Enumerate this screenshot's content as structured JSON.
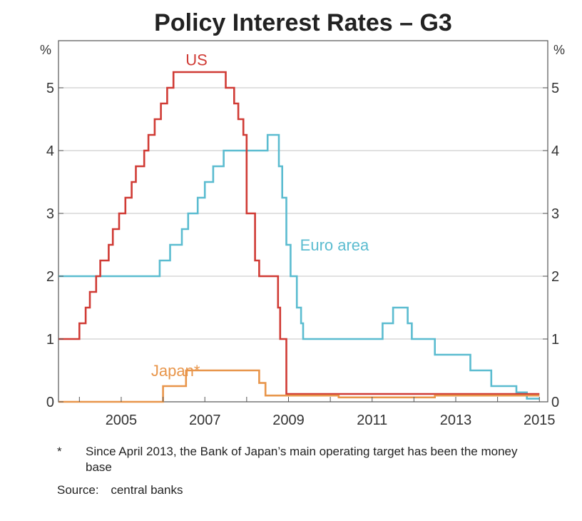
{
  "chart_data": {
    "type": "line",
    "title": "Policy Interest Rates – G3",
    "y_unit_left": "%",
    "y_unit_right": "%",
    "xlim": [
      2003.5,
      2015.2
    ],
    "ylim": [
      0,
      5.75
    ],
    "x_ticks": [
      2005,
      2007,
      2009,
      2011,
      2013,
      2015
    ],
    "x_tick_labels": [
      "2005",
      "2007",
      "2009",
      "2011",
      "2013",
      "2015"
    ],
    "y_ticks": [
      0,
      1,
      2,
      3,
      4,
      5
    ],
    "y_tick_labels": [
      "0",
      "1",
      "2",
      "3",
      "4",
      "5"
    ],
    "grid": true,
    "series": [
      {
        "name": "Euro area",
        "color": "#5bbcd0",
        "label_at": [
          2010.1,
          2.5
        ],
        "points": [
          [
            2003.5,
            2.0
          ],
          [
            2005.92,
            2.25
          ],
          [
            2006.17,
            2.5
          ],
          [
            2006.45,
            2.75
          ],
          [
            2006.6,
            3.0
          ],
          [
            2006.83,
            3.25
          ],
          [
            2007.0,
            3.5
          ],
          [
            2007.2,
            3.75
          ],
          [
            2007.45,
            4.0
          ],
          [
            2008.5,
            4.25
          ],
          [
            2008.77,
            3.75
          ],
          [
            2008.85,
            3.25
          ],
          [
            2008.95,
            2.5
          ],
          [
            2009.05,
            2.0
          ],
          [
            2009.2,
            1.5
          ],
          [
            2009.3,
            1.25
          ],
          [
            2009.35,
            1.0
          ],
          [
            2011.25,
            1.25
          ],
          [
            2011.5,
            1.5
          ],
          [
            2011.85,
            1.25
          ],
          [
            2011.95,
            1.0
          ],
          [
            2012.5,
            0.75
          ],
          [
            2013.35,
            0.5
          ],
          [
            2013.85,
            0.25
          ],
          [
            2014.45,
            0.15
          ],
          [
            2014.7,
            0.05
          ],
          [
            2015.0,
            0.05
          ]
        ]
      },
      {
        "name": "US",
        "color": "#d03b35",
        "label_at": [
          2006.8,
          5.45
        ],
        "points": [
          [
            2003.5,
            1.0
          ],
          [
            2004.0,
            1.25
          ],
          [
            2004.15,
            1.5
          ],
          [
            2004.25,
            1.75
          ],
          [
            2004.4,
            2.0
          ],
          [
            2004.5,
            2.25
          ],
          [
            2004.7,
            2.5
          ],
          [
            2004.8,
            2.75
          ],
          [
            2004.95,
            3.0
          ],
          [
            2005.1,
            3.25
          ],
          [
            2005.25,
            3.5
          ],
          [
            2005.35,
            3.75
          ],
          [
            2005.55,
            4.0
          ],
          [
            2005.65,
            4.25
          ],
          [
            2005.8,
            4.5
          ],
          [
            2005.95,
            4.75
          ],
          [
            2006.1,
            5.0
          ],
          [
            2006.25,
            5.25
          ],
          [
            2007.5,
            5.0
          ],
          [
            2007.7,
            4.75
          ],
          [
            2007.8,
            4.5
          ],
          [
            2007.92,
            4.25
          ],
          [
            2008.0,
            3.0
          ],
          [
            2008.2,
            2.25
          ],
          [
            2008.3,
            2.0
          ],
          [
            2008.75,
            1.5
          ],
          [
            2008.8,
            1.0
          ],
          [
            2008.95,
            0.125
          ],
          [
            2015.0,
            0.125
          ]
        ]
      },
      {
        "name": "Japan*",
        "color": "#e8954a",
        "label_at": [
          2006.3,
          0.5
        ],
        "points": [
          [
            2003.5,
            0.0
          ],
          [
            2006.0,
            0.25
          ],
          [
            2006.55,
            0.5
          ],
          [
            2008.3,
            0.3
          ],
          [
            2008.45,
            0.1
          ],
          [
            2010.2,
            0.07
          ],
          [
            2012.5,
            0.1
          ],
          [
            2015.0,
            0.1
          ]
        ]
      }
    ]
  },
  "notes": {
    "footnote_marker": "*",
    "footnote_text": "Since April 2013, the Bank of Japan’s main operating target has been the money base",
    "source_label": "Source:",
    "source_text": "central banks"
  }
}
